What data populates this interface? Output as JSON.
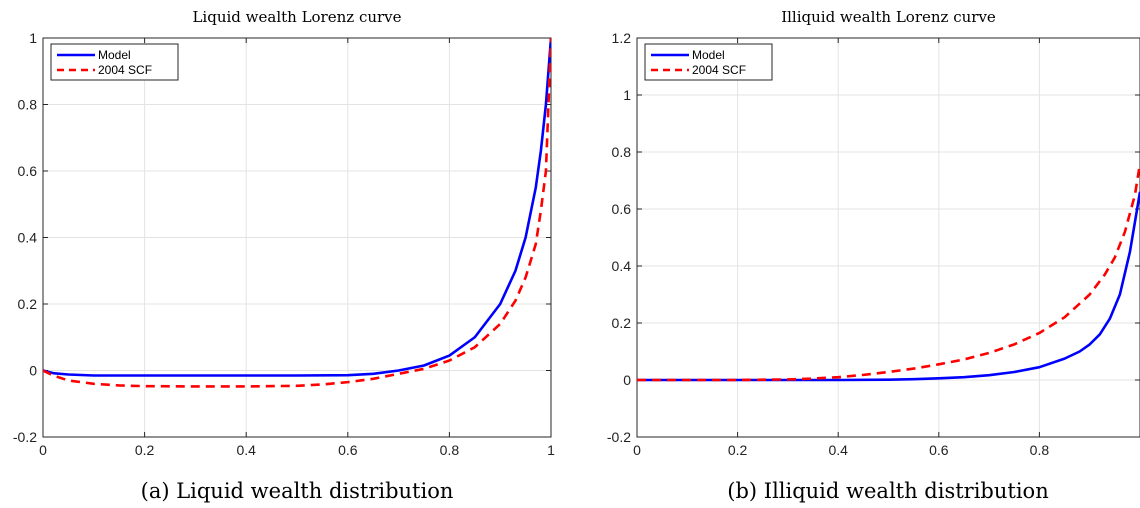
{
  "chart_data": [
    {
      "type": "line",
      "title": "Liquid wealth Lorenz curve",
      "caption": "(a) Liquid wealth distribution",
      "xlim": [
        0,
        1
      ],
      "ylim": [
        -0.2,
        1
      ],
      "xticks": [
        0,
        0.2,
        0.4,
        0.6,
        0.8,
        1
      ],
      "xtick_labels": [
        "0",
        "0.2",
        "0.4",
        "0.6",
        "0.8",
        "1"
      ],
      "yticks": [
        -0.2,
        0,
        0.2,
        0.4,
        0.6,
        0.8,
        1
      ],
      "ytick_labels": [
        "-0.2",
        "0",
        "0.2",
        "0.4",
        "0.6",
        "0.8",
        "1"
      ],
      "grid": true,
      "legend_position": "top-left",
      "series": [
        {
          "name": "Model",
          "color": "#0000ff",
          "style": "solid",
          "x": [
            0,
            0.02,
            0.05,
            0.1,
            0.2,
            0.3,
            0.4,
            0.5,
            0.6,
            0.65,
            0.7,
            0.75,
            0.8,
            0.85,
            0.9,
            0.93,
            0.95,
            0.97,
            0.98,
            0.99,
            1.0
          ],
          "y": [
            0,
            -0.008,
            -0.012,
            -0.015,
            -0.015,
            -0.015,
            -0.015,
            -0.015,
            -0.014,
            -0.01,
            0.0,
            0.015,
            0.045,
            0.1,
            0.2,
            0.3,
            0.4,
            0.55,
            0.66,
            0.8,
            1.0
          ]
        },
        {
          "name": "2004 SCF",
          "color": "#ff0000",
          "style": "dashed",
          "x": [
            0,
            0.02,
            0.05,
            0.1,
            0.15,
            0.2,
            0.3,
            0.4,
            0.5,
            0.55,
            0.6,
            0.65,
            0.7,
            0.75,
            0.8,
            0.85,
            0.9,
            0.93,
            0.95,
            0.97,
            0.98,
            0.99,
            1.0
          ],
          "y": [
            0,
            -0.015,
            -0.03,
            -0.04,
            -0.045,
            -0.047,
            -0.048,
            -0.048,
            -0.046,
            -0.042,
            -0.035,
            -0.025,
            -0.01,
            0.005,
            0.03,
            0.07,
            0.14,
            0.21,
            0.28,
            0.38,
            0.48,
            0.6,
            1.0
          ]
        }
      ]
    },
    {
      "type": "line",
      "title": "Illiquid wealth Lorenz curve",
      "caption": "(b) Illiquid wealth distribution",
      "xlim": [
        0,
        1
      ],
      "ylim": [
        -0.2,
        1.2
      ],
      "xticks": [
        0,
        0.2,
        0.4,
        0.6,
        0.8
      ],
      "xtick_labels": [
        "0",
        "0.2",
        "0.4",
        "0.6",
        "0.8"
      ],
      "yticks": [
        -0.2,
        0,
        0.2,
        0.4,
        0.6,
        0.8,
        1,
        1.2
      ],
      "ytick_labels": [
        "-0.2",
        "0",
        "0.2",
        "0.4",
        "0.6",
        "0.8",
        "1",
        "1.2"
      ],
      "grid": true,
      "legend_position": "top-left",
      "series": [
        {
          "name": "Model",
          "color": "#0000ff",
          "style": "solid",
          "x": [
            0,
            0.1,
            0.2,
            0.3,
            0.4,
            0.5,
            0.55,
            0.6,
            0.65,
            0.7,
            0.75,
            0.8,
            0.85,
            0.88,
            0.9,
            0.92,
            0.94,
            0.96,
            0.98,
            1.0
          ],
          "y": [
            0,
            0,
            0,
            0,
            0,
            0.001,
            0.003,
            0.006,
            0.01,
            0.017,
            0.028,
            0.045,
            0.075,
            0.1,
            0.125,
            0.16,
            0.215,
            0.3,
            0.45,
            0.66
          ]
        },
        {
          "name": "2004 SCF",
          "color": "#ff0000",
          "style": "dashed",
          "x": [
            0,
            0.1,
            0.2,
            0.3,
            0.35,
            0.4,
            0.45,
            0.5,
            0.55,
            0.6,
            0.65,
            0.7,
            0.75,
            0.8,
            0.85,
            0.9,
            0.93,
            0.95,
            0.97,
            0.99,
            1.0
          ],
          "y": [
            0,
            0,
            0,
            0.002,
            0.005,
            0.01,
            0.018,
            0.028,
            0.04,
            0.055,
            0.072,
            0.095,
            0.125,
            0.165,
            0.22,
            0.3,
            0.37,
            0.43,
            0.52,
            0.65,
            0.76
          ]
        }
      ]
    }
  ]
}
